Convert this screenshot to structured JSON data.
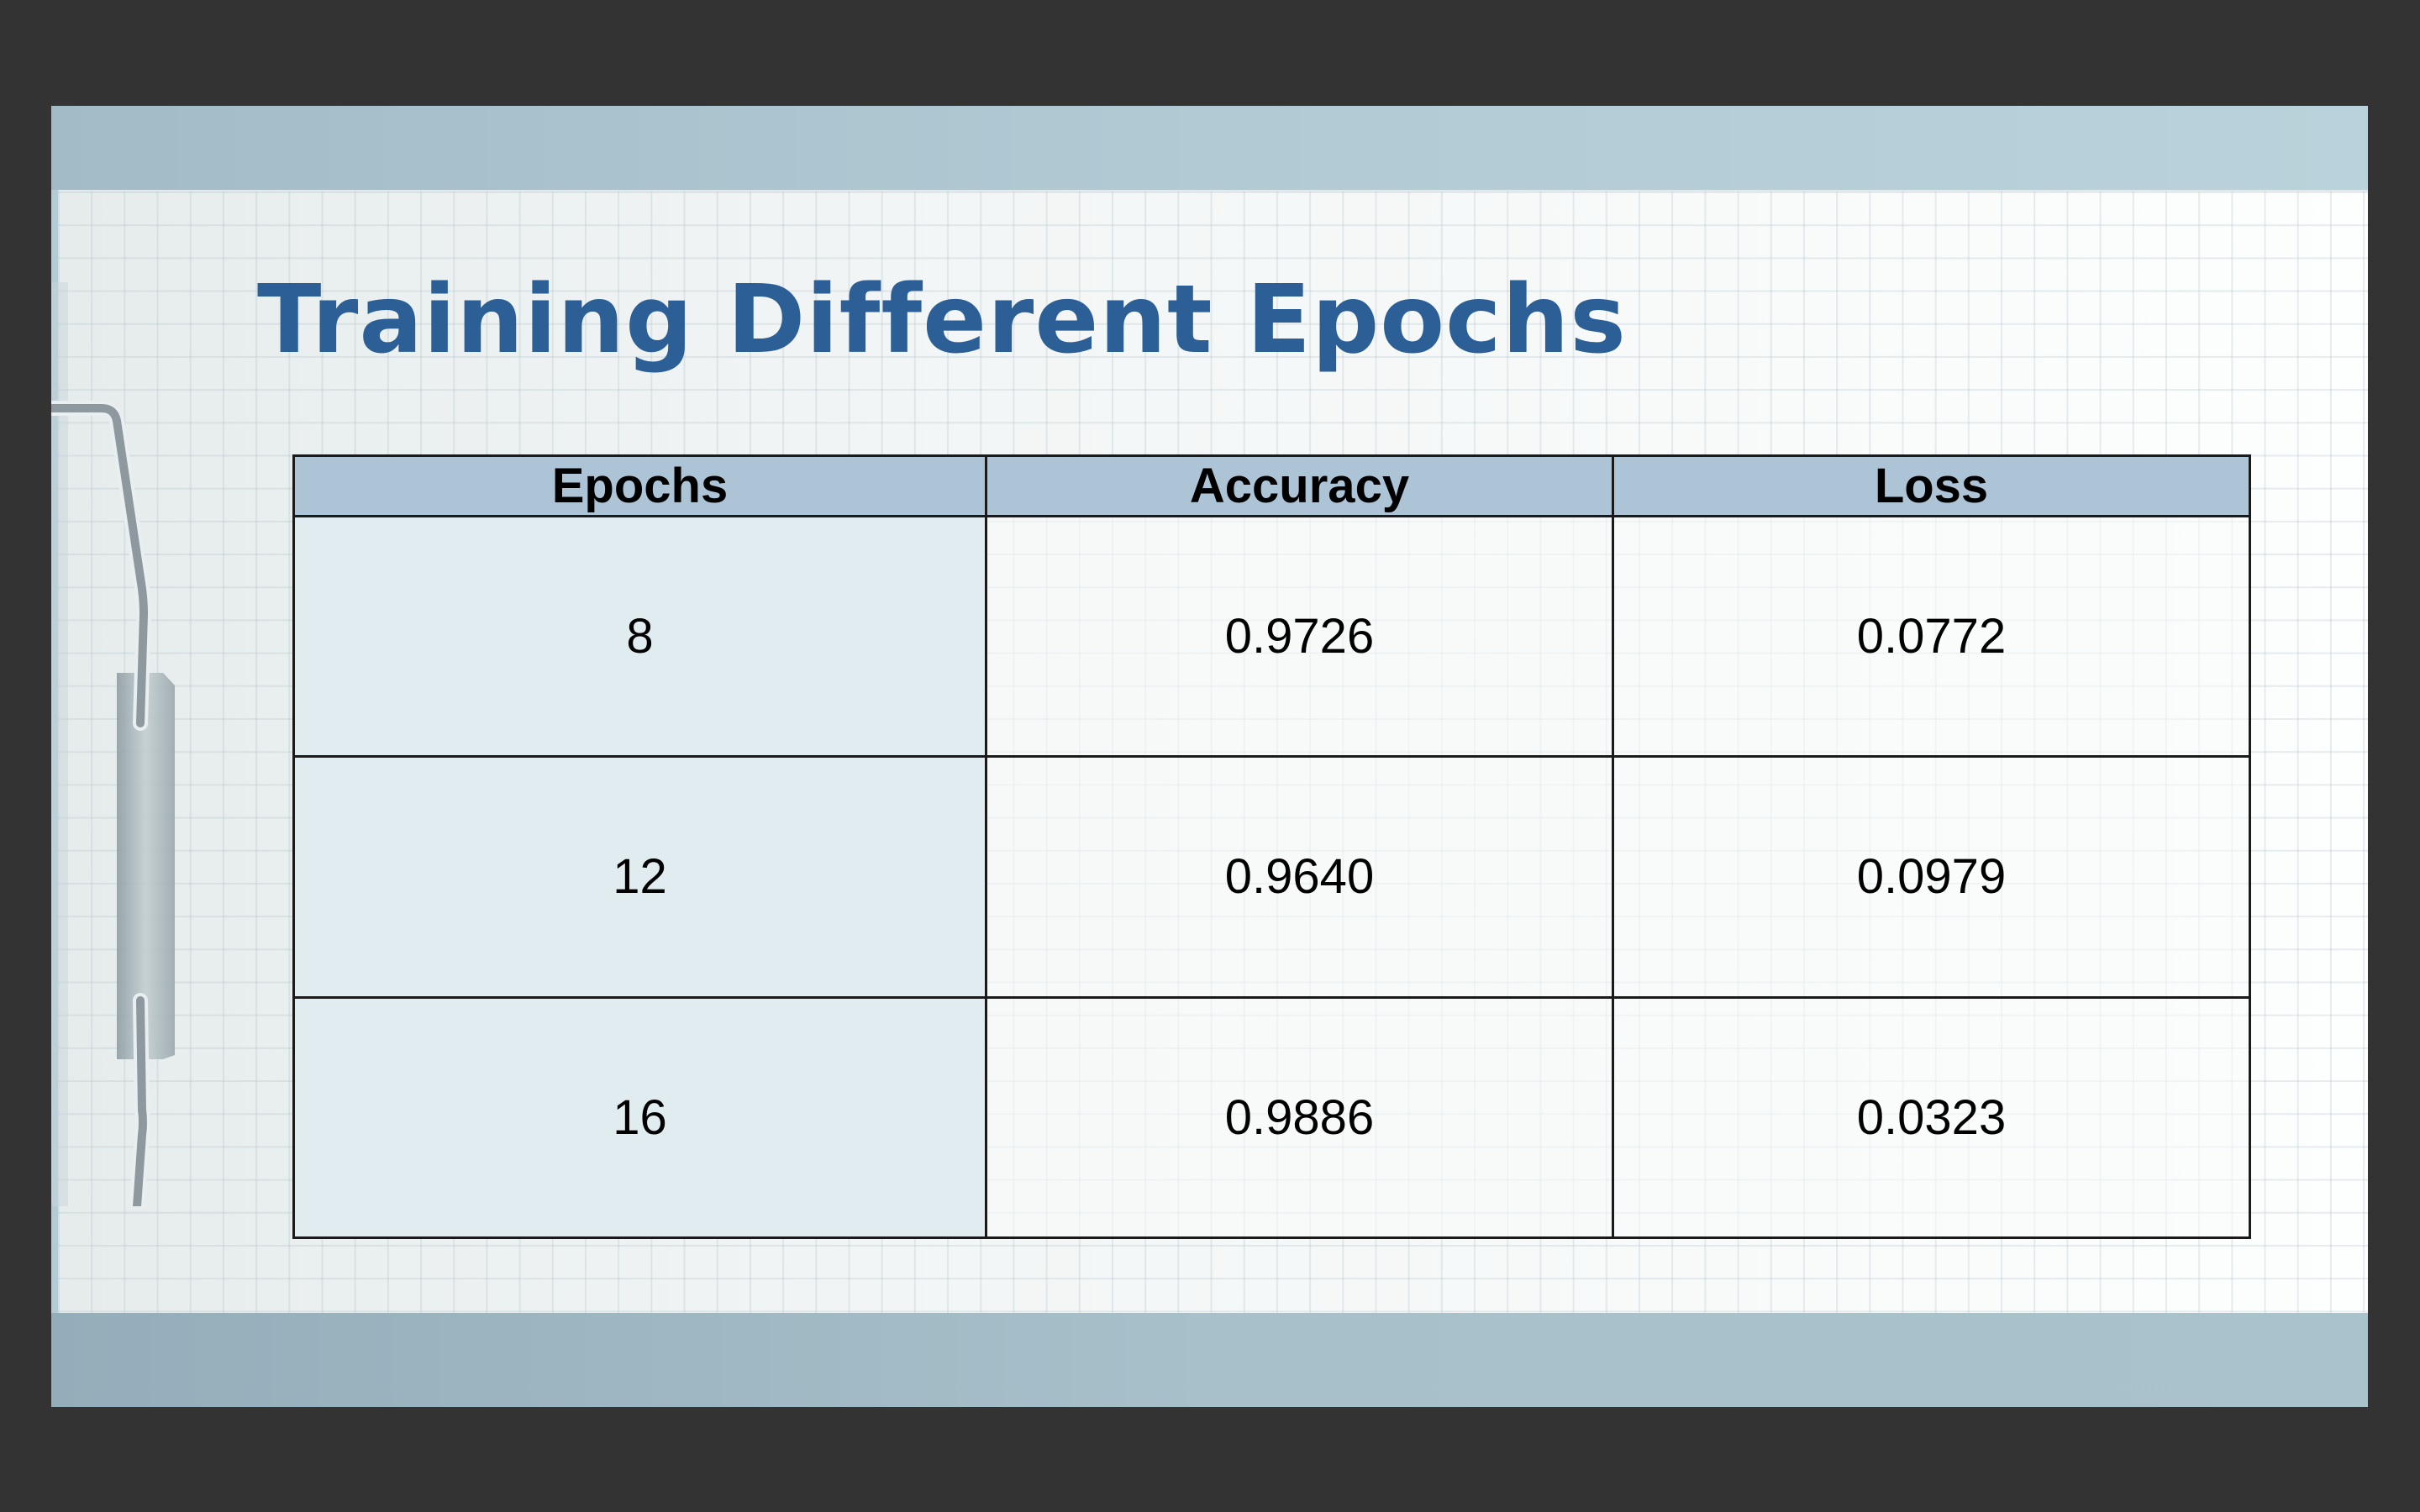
{
  "slide": {
    "title": "Training Different Epochs"
  },
  "table": {
    "headers": [
      "Epochs",
      "Accuracy",
      "Loss"
    ],
    "rows": [
      [
        "8",
        "0.9726",
        "0.0772"
      ],
      [
        "12",
        "0.9640",
        "0.0979"
      ],
      [
        "16",
        "0.9886",
        "0.0323"
      ]
    ]
  },
  "colors": {
    "title": "#2c5f96",
    "header_fill": "#adc3d6",
    "first_column_fill": "#e0ecf0",
    "background": "#333333"
  },
  "icons": {
    "clip": "paper-clip-icon"
  }
}
